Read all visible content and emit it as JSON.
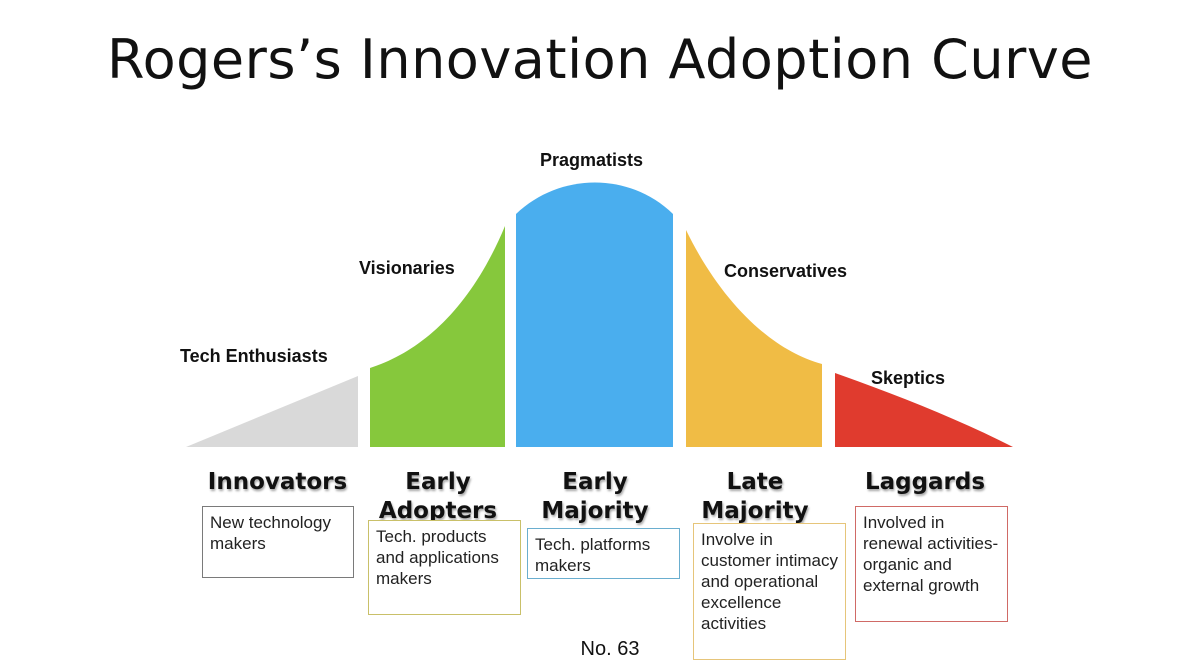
{
  "title": "Rogers’s Innovation Adoption Curve",
  "colors": {
    "innovators": "#d9d9d9",
    "early_adopters": "#86c83c",
    "early_majority": "#4aaeee",
    "late_majority": "#f0bc45",
    "laggards": "#e03b2e"
  },
  "personas": {
    "innovators": "Tech Enthusiasts",
    "early_adopters": "Visionaries",
    "early_majority": "Pragmatists",
    "late_majority": "Conservatives",
    "laggards": "Skeptics"
  },
  "segments": {
    "innovators": "Innovators",
    "early_adopters": "Early Adopters",
    "early_majority": "Early Majority",
    "late_majority": "Late Majority",
    "laggards": "Laggards"
  },
  "descriptions": {
    "innovators": "New technology makers",
    "early_adopters": "Tech. products and applications makers",
    "early_majority": "Tech. platforms makers",
    "late_majority": "Involve in customer intimacy and operational excellence activities",
    "laggards": "Involved in renewal activities-organic and external growth"
  },
  "footer": "No. 63"
}
